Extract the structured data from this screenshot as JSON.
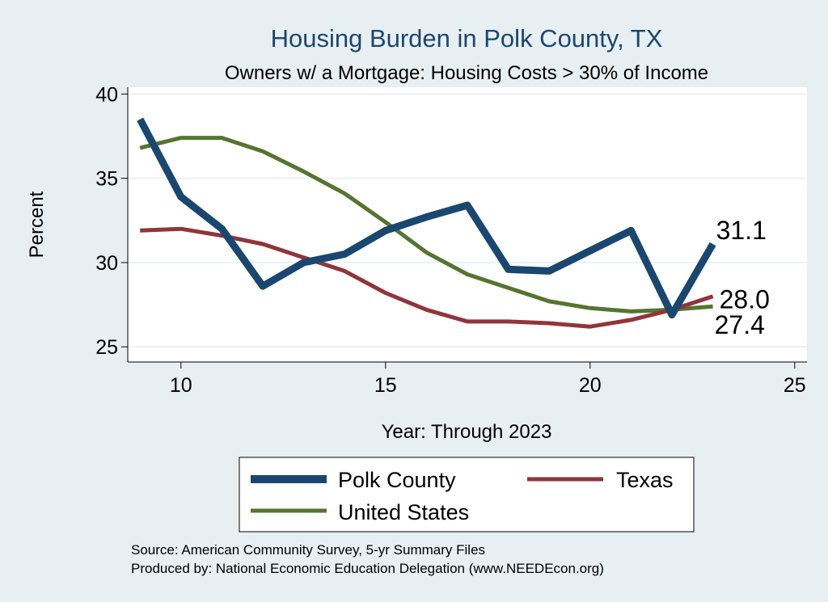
{
  "chart_data": {
    "type": "line",
    "title": "Housing Burden in Polk County, TX",
    "subtitle": "Owners w/ a Mortgage: Housing Costs > 30% of Income",
    "xlabel": "Year: Through 2023",
    "ylabel": "Percent",
    "xlim": [
      8.7,
      25.3
    ],
    "ylim": [
      24.1,
      40.4
    ],
    "xticks": [
      10,
      15,
      20,
      25
    ],
    "yticks": [
      25,
      30,
      35,
      40
    ],
    "grid": true,
    "legend_position": "bottom",
    "series": [
      {
        "name": "Polk County",
        "color": "#1a476f",
        "x": [
          9,
          10,
          11,
          12,
          13,
          14,
          15,
          16,
          17,
          18,
          19,
          20,
          21,
          22,
          23
        ],
        "y": [
          38.5,
          33.9,
          32.0,
          28.6,
          30.0,
          30.5,
          31.9,
          32.7,
          33.4,
          29.6,
          29.5,
          30.7,
          31.9,
          26.9,
          31.1
        ],
        "end_label": "31.1"
      },
      {
        "name": "Texas",
        "color": "#90353b",
        "x": [
          9,
          10,
          11,
          12,
          13,
          14,
          15,
          16,
          17,
          18,
          19,
          20,
          21,
          22,
          23
        ],
        "y": [
          31.9,
          32.0,
          31.6,
          31.1,
          30.3,
          29.5,
          28.2,
          27.2,
          26.5,
          26.5,
          26.4,
          26.2,
          26.6,
          27.2,
          28.0
        ],
        "end_label": "28.0"
      },
      {
        "name": "United States",
        "color": "#55752f",
        "x": [
          9,
          10,
          11,
          12,
          13,
          14,
          15,
          16,
          17,
          18,
          19,
          20,
          21,
          22,
          23
        ],
        "y": [
          36.8,
          37.4,
          37.4,
          36.6,
          35.4,
          34.1,
          32.4,
          30.6,
          29.3,
          28.5,
          27.7,
          27.3,
          27.1,
          27.2,
          27.4
        ],
        "end_label": "27.4"
      }
    ]
  },
  "footer": {
    "source": "Source: American Community Survey, 5-yr Summary Files",
    "produced_by": "Produced by: National Economic Education Delegation (www.NEEDEcon.org)"
  }
}
